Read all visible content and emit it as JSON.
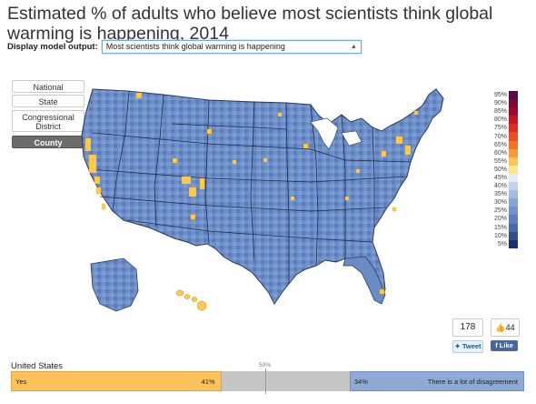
{
  "title": "Estimated % of adults who believe most scientists think global warming is happening, 2014",
  "model": {
    "label": "Display model output:",
    "value": "Most scientists think global warming is happening"
  },
  "geo_buttons": [
    {
      "label": "National",
      "active": false
    },
    {
      "label": "State",
      "active": false
    },
    {
      "label": "Congressional District",
      "active": false
    },
    {
      "label": "County",
      "active": true
    }
  ],
  "legend": {
    "labels": [
      "95%",
      "90%",
      "85%",
      "80%",
      "75%",
      "70%",
      "65%",
      "60%",
      "55%",
      "50%",
      "45%",
      "40%",
      "35%",
      "30%",
      "25%",
      "20%",
      "15%",
      "10%",
      "5%"
    ],
    "colors": [
      "#5a0a3c",
      "#7d0a36",
      "#9e0a2e",
      "#c2152b",
      "#e02a22",
      "#ee4e1f",
      "#f6722a",
      "#f89a3a",
      "#fbc45c",
      "#fde68e",
      "#e6ecf6",
      "#c1d2ea",
      "#a2bbe0",
      "#88a6d4",
      "#7393c8",
      "#5e7fbb",
      "#4a69a8",
      "#354f8e",
      "#1e2f6a"
    ]
  },
  "social": {
    "tweet_count": "178",
    "tweet_label": "Tweet",
    "like_count": "44",
    "like_label": "Like"
  },
  "summary": {
    "region": "United States",
    "midpoint_label": "50%",
    "yes_label": "Yes",
    "yes_pct": "41%",
    "yes_value": 41,
    "disagree_pct": "34%",
    "disagree_value": 34,
    "disagree_label": "There is a lot of disagreement"
  },
  "colors": {
    "yes": "#ffc25a",
    "neutral": "#c6c6c6",
    "disagree": "#8eaad4",
    "map_base": "#5a7fc0"
  }
}
